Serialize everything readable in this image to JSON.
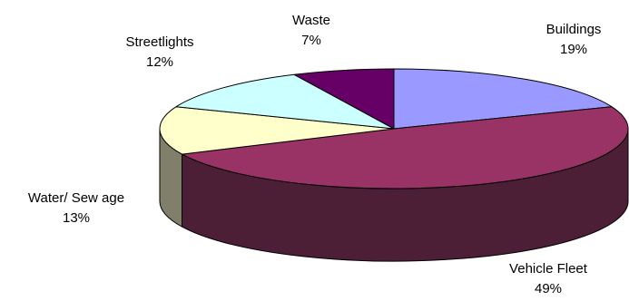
{
  "chart_data": {
    "type": "pie",
    "style": "3d-exploded-off",
    "slices": [
      {
        "label": "Buildings",
        "percent_label": "19%",
        "value": 19,
        "color": "#9999ff",
        "side_color": "#5a5aa0"
      },
      {
        "label": "Vehicle Fleet",
        "percent_label": "49%",
        "value": 49,
        "color": "#993366",
        "side_color": "#4d1f36"
      },
      {
        "label": "Water/ Sew age",
        "percent_label": "13%",
        "value": 13,
        "color": "#ffffcc",
        "side_color": "#80806a"
      },
      {
        "label": "Streetlights",
        "percent_label": "12%",
        "value": 12,
        "color": "#ccffff",
        "side_color": "#6a8080"
      },
      {
        "label": "Waste",
        "percent_label": "7%",
        "value": 7,
        "color": "#660066",
        "side_color": "#330033"
      }
    ]
  }
}
